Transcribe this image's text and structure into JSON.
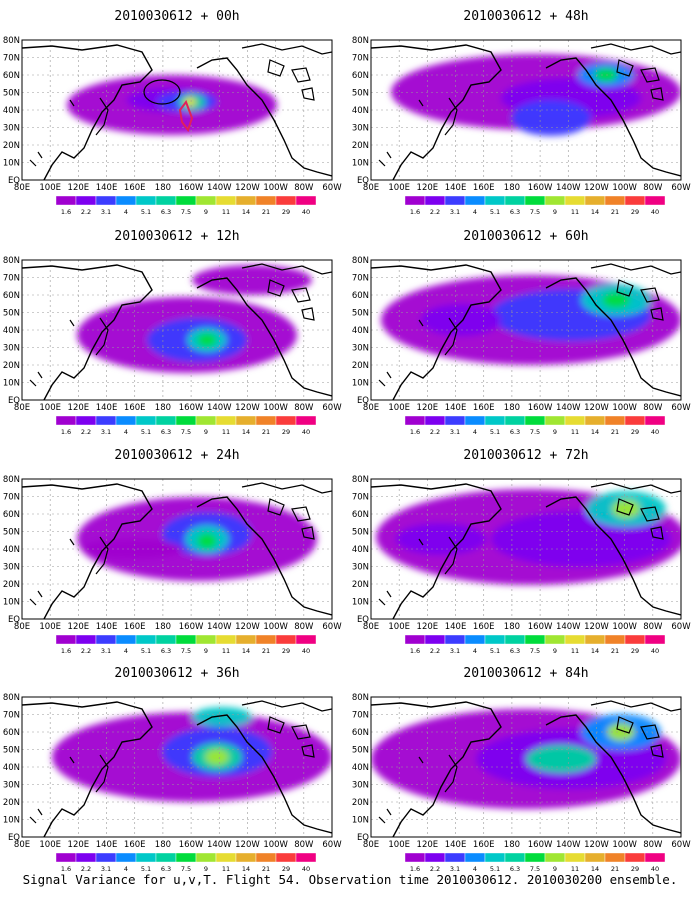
{
  "caption": "Signal Variance for u,v,T. Flight 54. Observation time 2010030612. 2010030200 ensemble.",
  "colorbar_levels": [
    "1.6",
    "2.2",
    "3.1",
    "4",
    "5.1",
    "6.3",
    "7.5",
    "9",
    "11",
    "14",
    "21",
    "29",
    "40"
  ],
  "colorbar_colors": [
    "#a000d0",
    "#7d00f0",
    "#3c3cff",
    "#0a8cff",
    "#00c8c8",
    "#00d2a0",
    "#00dc3c",
    "#a0e632",
    "#e6dc32",
    "#e6af2d",
    "#f08228",
    "#fa3c3c",
    "#f00082"
  ],
  "lon_labels": [
    "80E",
    "100E",
    "120E",
    "140E",
    "160E",
    "180",
    "160W",
    "140W",
    "120W",
    "100W",
    "80W",
    "60W"
  ],
  "lat_labels": [
    "80N",
    "70N",
    "60N",
    "50N",
    "40N",
    "30N",
    "20N",
    "10N",
    "EQ"
  ],
  "panels": [
    {
      "title": "2010030612 + 00h"
    },
    {
      "title": "2010030612 + 48h"
    },
    {
      "title": "2010030612 + 12h"
    },
    {
      "title": "2010030612 + 60h"
    },
    {
      "title": "2010030612 + 24h"
    },
    {
      "title": "2010030612 + 72h"
    },
    {
      "title": "2010030612 + 36h"
    },
    {
      "title": "2010030612 + 84h"
    }
  ]
}
